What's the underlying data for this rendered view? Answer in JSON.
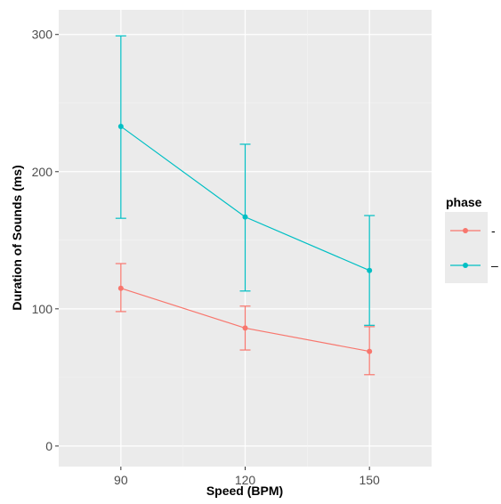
{
  "chart_data": {
    "type": "line",
    "xlabel": "Speed (BPM)",
    "ylabel": "Duration of Sounds (ms)",
    "x": [
      90,
      120,
      150
    ],
    "x_tick_labels": [
      "90",
      "120",
      "150"
    ],
    "y_ticks": [
      0,
      100,
      200,
      300
    ],
    "y_tick_labels": [
      "0",
      "100",
      "200",
      "300"
    ],
    "xlim": [
      75,
      165
    ],
    "ylim": [
      -15,
      318
    ],
    "grid": true,
    "legend": {
      "title": "phase",
      "position": "right"
    },
    "series": [
      {
        "name": "-",
        "color": "#f8766d",
        "values": [
          115,
          86,
          69
        ],
        "error_low": [
          98,
          70,
          52
        ],
        "error_high": [
          133,
          102,
          87
        ]
      },
      {
        "name": "–",
        "color": "#00bfc4",
        "values": [
          233,
          167,
          128
        ],
        "error_low": [
          166,
          113,
          88
        ],
        "error_high": [
          299,
          220,
          168
        ]
      }
    ]
  }
}
